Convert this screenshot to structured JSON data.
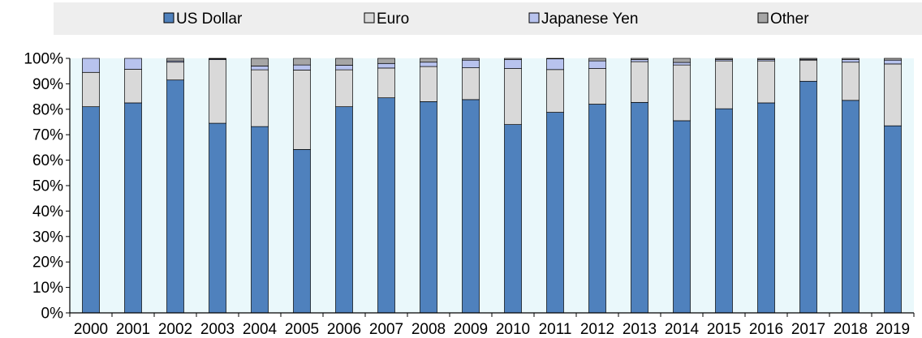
{
  "chart_data": {
    "type": "bar",
    "stacked": true,
    "percent_axis": true,
    "categories": [
      "2000",
      "2001",
      "2002",
      "2003",
      "2004",
      "2005",
      "2006",
      "2007",
      "2008",
      "2009",
      "2010",
      "2011",
      "2012",
      "2013",
      "2014",
      "2015",
      "2016",
      "2017",
      "2018",
      "2019"
    ],
    "series": [
      {
        "name": "US Dollar",
        "color": "#4f81bd",
        "values": [
          81,
          82.5,
          91.5,
          74.5,
          73.2,
          64.2,
          81,
          84.5,
          83,
          83.8,
          74,
          78.8,
          82,
          82.7,
          75.5,
          80.2,
          82.5,
          91,
          83.5,
          73.5
        ]
      },
      {
        "name": "Euro",
        "color": "#d9d9d9",
        "values": [
          13.5,
          13.2,
          7,
          25,
          22.3,
          31.2,
          14.5,
          11.7,
          13.8,
          12.5,
          22,
          16.8,
          14,
          16,
          21.9,
          18.8,
          16.5,
          8.3,
          15,
          24.3
        ]
      },
      {
        "name": "Japanese Yen",
        "color": "#b8c3ee",
        "values": [
          5.5,
          4.3,
          0.5,
          0.3,
          1.5,
          2,
          1.8,
          1.8,
          1.7,
          3,
          3.5,
          4.2,
          3,
          0.8,
          1,
          0.5,
          0.5,
          0.3,
          1,
          1.5
        ]
      },
      {
        "name": "Other",
        "color": "#a6a6a6",
        "values": [
          0,
          0,
          1,
          0.2,
          3,
          2.6,
          2.7,
          2,
          1.5,
          0.7,
          0.5,
          0.2,
          1,
          0.5,
          1.6,
          0.5,
          0.5,
          0.4,
          0.5,
          0.7
        ]
      }
    ],
    "yticks": [
      "0%",
      "10%",
      "20%",
      "30%",
      "40%",
      "50%",
      "60%",
      "70%",
      "80%",
      "90%",
      "100%"
    ],
    "ylim": [
      0,
      100
    ],
    "legend_position": "top",
    "background": {
      "plot": "#eaf8fb",
      "legend": "#eeeeee"
    }
  }
}
